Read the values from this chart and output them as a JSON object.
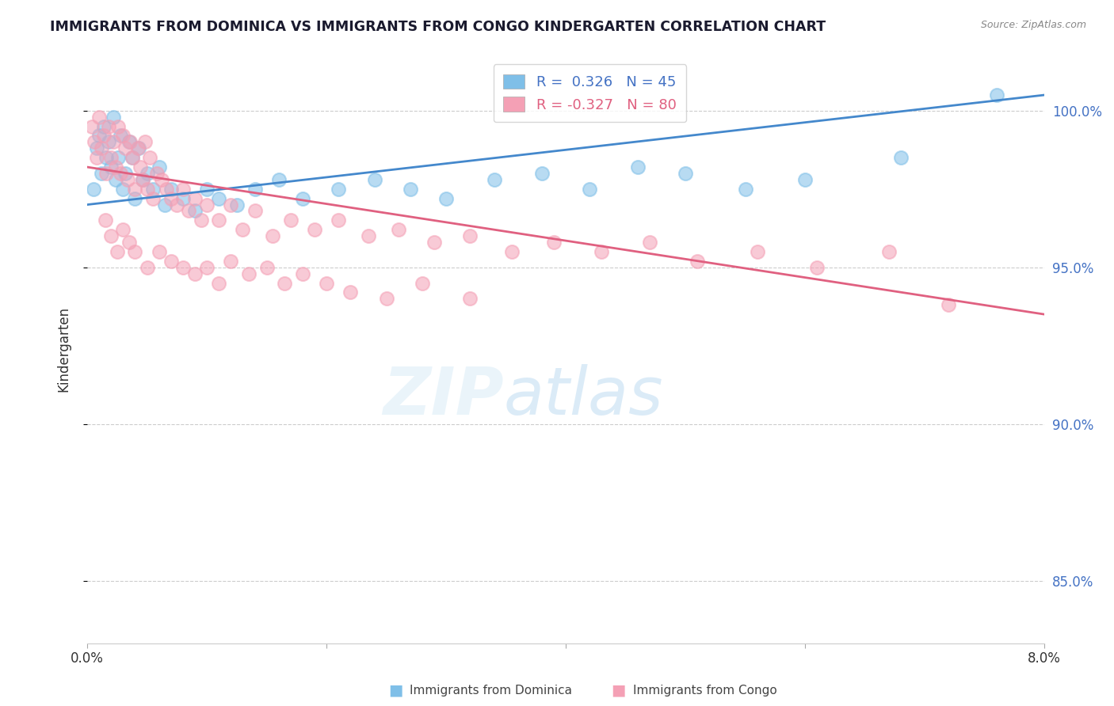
{
  "title": "IMMIGRANTS FROM DOMINICA VS IMMIGRANTS FROM CONGO KINDERGARTEN CORRELATION CHART",
  "source": "Source: ZipAtlas.com",
  "ylabel": "Kindergarten",
  "xmin": 0.0,
  "xmax": 8.0,
  "ymin": 83.0,
  "ymax": 101.8,
  "yticks": [
    85.0,
    90.0,
    95.0,
    100.0
  ],
  "ytick_labels": [
    "85.0%",
    "90.0%",
    "95.0%",
    "100.0%"
  ],
  "dominica_color": "#7fbfe8",
  "congo_color": "#f4a0b5",
  "dominica_line_color": "#4488cc",
  "congo_line_color": "#e06080",
  "dominica_R": 0.326,
  "dominica_N": 45,
  "congo_R": -0.327,
  "congo_N": 80,
  "grid_color": "#cccccc",
  "dominica_line_y0": 97.0,
  "dominica_line_y1": 100.5,
  "congo_line_y0": 98.2,
  "congo_line_y1": 93.5,
  "dominica_scatter_x": [
    0.05,
    0.08,
    0.1,
    0.12,
    0.14,
    0.16,
    0.18,
    0.2,
    0.22,
    0.24,
    0.26,
    0.28,
    0.3,
    0.32,
    0.35,
    0.38,
    0.4,
    0.43,
    0.46,
    0.5,
    0.55,
    0.6,
    0.65,
    0.7,
    0.8,
    0.9,
    1.0,
    1.1,
    1.25,
    1.4,
    1.6,
    1.8,
    2.1,
    2.4,
    2.7,
    3.0,
    3.4,
    3.8,
    4.2,
    4.6,
    5.0,
    5.5,
    6.0,
    6.8,
    7.6
  ],
  "dominica_scatter_y": [
    97.5,
    98.8,
    99.2,
    98.0,
    99.5,
    98.5,
    99.0,
    98.2,
    99.8,
    97.8,
    98.5,
    99.2,
    97.5,
    98.0,
    99.0,
    98.5,
    97.2,
    98.8,
    97.8,
    98.0,
    97.5,
    98.2,
    97.0,
    97.5,
    97.2,
    96.8,
    97.5,
    97.2,
    97.0,
    97.5,
    97.8,
    97.2,
    97.5,
    97.8,
    97.5,
    97.2,
    97.8,
    98.0,
    97.5,
    98.2,
    98.0,
    97.5,
    97.8,
    98.5,
    100.5
  ],
  "congo_scatter_x": [
    0.04,
    0.06,
    0.08,
    0.1,
    0.12,
    0.14,
    0.16,
    0.18,
    0.2,
    0.22,
    0.24,
    0.26,
    0.28,
    0.3,
    0.32,
    0.34,
    0.36,
    0.38,
    0.4,
    0.42,
    0.44,
    0.46,
    0.48,
    0.5,
    0.52,
    0.55,
    0.58,
    0.62,
    0.66,
    0.7,
    0.75,
    0.8,
    0.85,
    0.9,
    0.95,
    1.0,
    1.1,
    1.2,
    1.3,
    1.4,
    1.55,
    1.7,
    1.9,
    2.1,
    2.35,
    2.6,
    2.9,
    3.2,
    3.55,
    3.9,
    4.3,
    4.7,
    5.1,
    5.6,
    6.1,
    6.7,
    0.15,
    0.2,
    0.25,
    0.3,
    0.35,
    0.4,
    0.5,
    0.6,
    0.7,
    0.8,
    0.9,
    1.0,
    1.1,
    1.2,
    1.35,
    1.5,
    1.65,
    1.8,
    2.0,
    2.2,
    2.5,
    2.8,
    3.2,
    7.2
  ],
  "congo_scatter_y": [
    99.5,
    99.0,
    98.5,
    99.8,
    98.8,
    99.2,
    98.0,
    99.5,
    98.5,
    99.0,
    98.2,
    99.5,
    98.0,
    99.2,
    98.8,
    97.8,
    99.0,
    98.5,
    97.5,
    98.8,
    98.2,
    97.8,
    99.0,
    97.5,
    98.5,
    97.2,
    98.0,
    97.8,
    97.5,
    97.2,
    97.0,
    97.5,
    96.8,
    97.2,
    96.5,
    97.0,
    96.5,
    97.0,
    96.2,
    96.8,
    96.0,
    96.5,
    96.2,
    96.5,
    96.0,
    96.2,
    95.8,
    96.0,
    95.5,
    95.8,
    95.5,
    95.8,
    95.2,
    95.5,
    95.0,
    95.5,
    96.5,
    96.0,
    95.5,
    96.2,
    95.8,
    95.5,
    95.0,
    95.5,
    95.2,
    95.0,
    94.8,
    95.0,
    94.5,
    95.2,
    94.8,
    95.0,
    94.5,
    94.8,
    94.5,
    94.2,
    94.0,
    94.5,
    94.0,
    93.8
  ]
}
